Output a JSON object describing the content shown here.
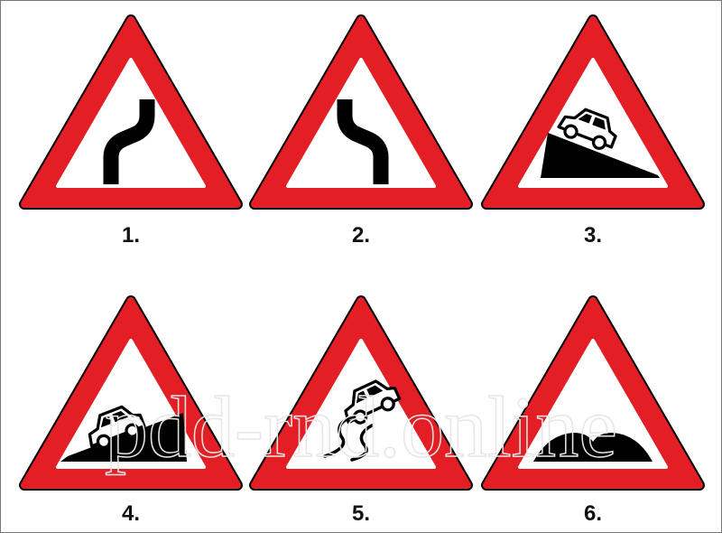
{
  "signs": [
    {
      "label": "1."
    },
    {
      "label": "2."
    },
    {
      "label": "3."
    },
    {
      "label": "4."
    },
    {
      "label": "5."
    },
    {
      "label": "6."
    }
  ],
  "watermark": "pdd-rnd.online"
}
